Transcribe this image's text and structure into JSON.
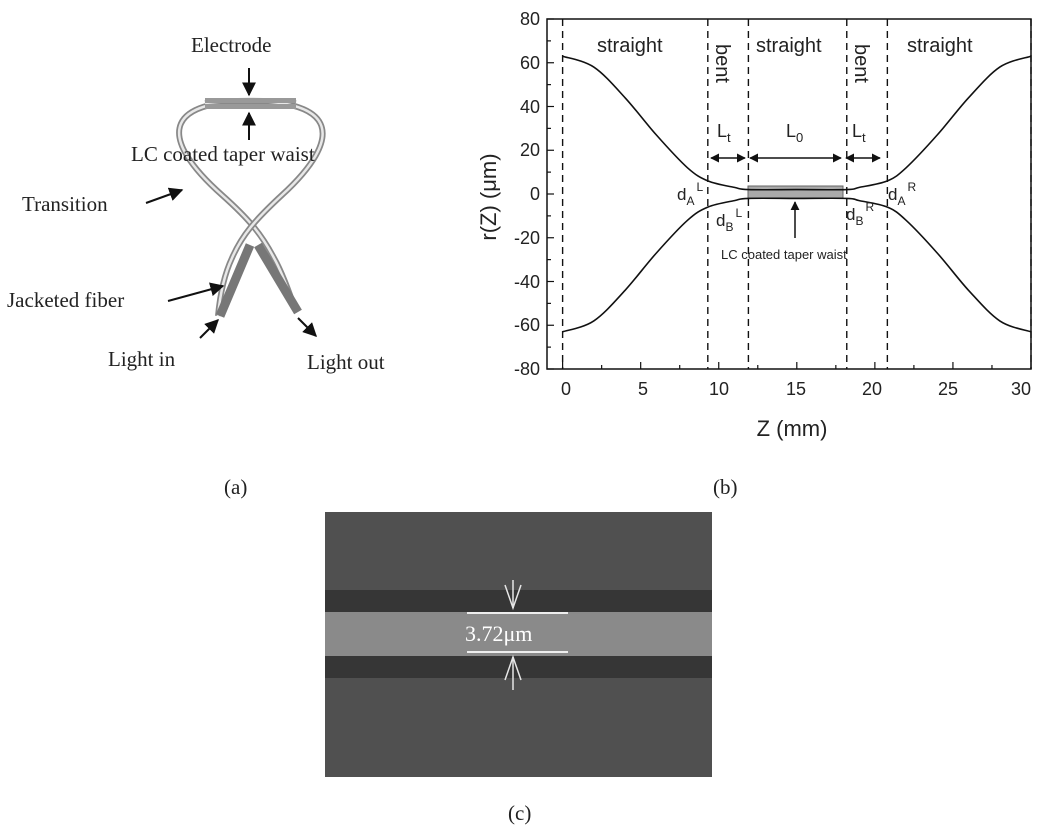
{
  "panel_a": {
    "labels": {
      "electrode": "Electrode",
      "lc_waist": "LC coated taper waist",
      "transition": "Transition",
      "jacketed": "Jacketed fiber",
      "light_in": "Light in",
      "light_out": "Light out"
    },
    "caption": "(a)"
  },
  "panel_b": {
    "caption": "(b)",
    "xlabel": "Z (mm)",
    "ylabel": "r(Z) (μm)",
    "x_ticks": [
      "0",
      "5",
      "10",
      "15",
      "20",
      "25",
      "30"
    ],
    "y_ticks": [
      "80",
      "60",
      "40",
      "20",
      "0",
      "-20",
      "-40",
      "-60",
      "-80"
    ],
    "regions": {
      "straight_left": "straight",
      "bent_left": "bent",
      "straight_mid": "straight",
      "bent_right": "bent",
      "straight_right": "straight"
    },
    "dims": {
      "lt": "L",
      "lt_sub": "t",
      "l0": "L",
      "l0_sub": "0"
    },
    "points": {
      "d_a_l": "d",
      "d_a_l_sub": "A",
      "d_a_l_sup": "L",
      "d_b_l": "d",
      "d_b_l_sub": "B",
      "d_b_l_sup": "L",
      "d_b_r": "d",
      "d_b_r_sub": "B",
      "d_b_r_sup": "R",
      "d_a_r": "d",
      "d_a_r_sub": "A",
      "d_a_r_sup": "R"
    },
    "waist_label": "LC coated taper waist"
  },
  "panel_c": {
    "caption": "(c)",
    "measurement": "3.72μm"
  },
  "chart_data": {
    "type": "line",
    "xlabel": "Z (mm)",
    "ylabel": "r(Z) (μm)",
    "xlim": [
      -1,
      30
    ],
    "ylim": [
      -80,
      80
    ],
    "grid": false,
    "x": [
      0,
      2,
      4,
      6,
      8,
      9.3,
      11,
      11.9,
      15,
      18.2,
      19,
      20.8,
      22,
      24,
      26,
      28,
      30
    ],
    "series": [
      {
        "values": [
          63,
          58,
          44,
          27,
          12,
          6,
          3,
          2,
          2,
          2,
          3,
          6,
          12,
          27,
          44,
          58,
          63
        ]
      },
      {
        "values": [
          -63,
          -58,
          -44,
          -27,
          -12,
          -6,
          -3,
          -2,
          -2,
          -2,
          -3,
          -6,
          -12,
          -27,
          -44,
          -58,
          -63
        ]
      }
    ],
    "vlines": [
      0,
      9.3,
      11.9,
      18.2,
      20.8,
      30
    ]
  }
}
